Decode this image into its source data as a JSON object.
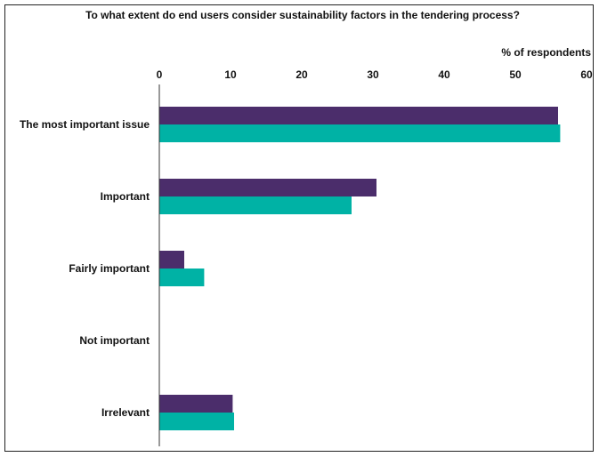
{
  "chart_data": {
    "type": "bar",
    "orientation": "horizontal",
    "title": "To what extent do end users consider sustainability factors in the tendering process?",
    "xlabel": "% of respondents",
    "ylabel": "",
    "xlim": [
      0,
      60
    ],
    "xticks": [
      "0",
      "10",
      "20",
      "30",
      "40",
      "50",
      "60"
    ],
    "x_axis_position": "top",
    "grid": false,
    "legend": "none",
    "categories": [
      "The most important issue",
      "Important",
      "Fairly important",
      "Not important",
      "Irrelevant"
    ],
    "series": [
      {
        "color": "#4b2d6b",
        "values": [
          56,
          30.5,
          3.5,
          0,
          10.3
        ]
      },
      {
        "color": "#00b2a5",
        "values": [
          56.3,
          27,
          6.3,
          0,
          10.5
        ]
      }
    ]
  }
}
